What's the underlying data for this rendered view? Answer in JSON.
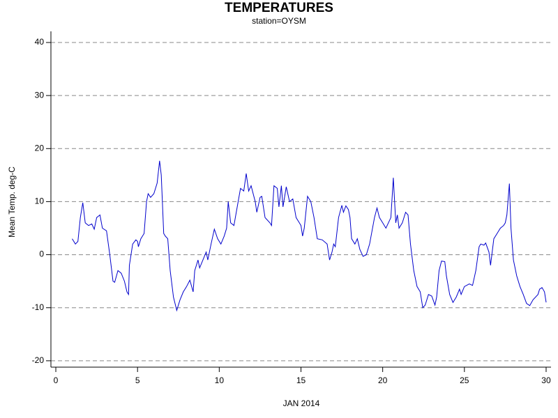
{
  "chart_data": {
    "type": "line",
    "title": "TEMPERATURES",
    "subtitle": "station=OYSM",
    "x_label": "JAN 2014",
    "y_label": "Mean Temp. deg-C",
    "xlim": [
      -0.3,
      30.3
    ],
    "xticks": [
      0,
      5,
      10,
      15,
      20,
      25,
      30
    ],
    "ylim": [
      -21.2,
      42.1
    ],
    "yticks": [
      -20,
      -10,
      0,
      10,
      20,
      30,
      40
    ],
    "grid": true,
    "grid_style": "dashed",
    "series": [
      {
        "name": "Mean Temp",
        "color": "#0000cc",
        "x": [
          1.0,
          1.2,
          1.35,
          1.5,
          1.65,
          1.8,
          2.0,
          2.2,
          2.35,
          2.5,
          2.7,
          2.85,
          3.1,
          3.3,
          3.5,
          3.6,
          3.8,
          4.0,
          4.2,
          4.35,
          4.45,
          4.5,
          4.7,
          4.9,
          5.0,
          5.05,
          5.2,
          5.4,
          5.55,
          5.65,
          5.8,
          6.0,
          6.2,
          6.35,
          6.45,
          6.6,
          6.7,
          6.85,
          7.0,
          7.2,
          7.4,
          7.6,
          7.8,
          8.0,
          8.2,
          8.4,
          8.5,
          8.7,
          8.8,
          9.0,
          9.2,
          9.3,
          9.5,
          9.7,
          9.9,
          10.1,
          10.3,
          10.45,
          10.55,
          10.7,
          10.9,
          11.1,
          11.3,
          11.5,
          11.65,
          11.8,
          11.95,
          12.2,
          12.3,
          12.5,
          12.6,
          12.8,
          13.1,
          13.2,
          13.35,
          13.55,
          13.65,
          13.8,
          13.9,
          14.1,
          14.3,
          14.5,
          14.7,
          14.9,
          15.0,
          15.1,
          15.2,
          15.4,
          15.6,
          15.8,
          16.0,
          16.3,
          16.6,
          16.75,
          16.9,
          17.0,
          17.1,
          17.3,
          17.5,
          17.6,
          17.75,
          17.9,
          18.0,
          18.1,
          18.3,
          18.45,
          18.6,
          18.8,
          19.0,
          19.2,
          19.5,
          19.65,
          19.8,
          20.0,
          20.2,
          20.5,
          20.65,
          20.8,
          20.9,
          21.0,
          21.2,
          21.4,
          21.55,
          21.7,
          21.9,
          22.1,
          22.3,
          22.45,
          22.6,
          22.8,
          23.0,
          23.2,
          23.3,
          23.45,
          23.6,
          23.8,
          23.9,
          24.1,
          24.3,
          24.5,
          24.7,
          24.8,
          25.0,
          25.3,
          25.5,
          25.7,
          25.9,
          26.0,
          26.2,
          26.3,
          26.5,
          26.6,
          26.8,
          27.0,
          27.2,
          27.4,
          27.5,
          27.6,
          27.75,
          27.85,
          28.0,
          28.2,
          28.4,
          28.6,
          28.8,
          29.0,
          29.2,
          29.5,
          29.6,
          29.75,
          29.9,
          30.0
        ],
        "values": [
          3,
          2,
          2.5,
          7,
          9.8,
          6,
          5.5,
          5.8,
          4.8,
          7,
          7.5,
          5,
          4.5,
          0,
          -5,
          -5.2,
          -3,
          -3.5,
          -5,
          -7,
          -7.5,
          -2,
          2,
          2.8,
          2.5,
          1.5,
          3,
          4,
          10,
          11.5,
          10.8,
          11.5,
          13.5,
          17.7,
          15,
          4,
          3.5,
          3,
          -3,
          -8,
          -10.5,
          -8.5,
          -7,
          -6,
          -4.8,
          -7,
          -3,
          -1,
          -2.5,
          -1,
          0.5,
          -1,
          2,
          4.8,
          3,
          2,
          3.5,
          5,
          10,
          6,
          5.5,
          9,
          12.5,
          12,
          15.3,
          12,
          13,
          10,
          8,
          10.8,
          11,
          7,
          6,
          5.5,
          13,
          12.5,
          9,
          13,
          9,
          12.8,
          10,
          10.5,
          7,
          6,
          5.5,
          3.5,
          5,
          11,
          10,
          7,
          3,
          2.8,
          2,
          -1,
          0.5,
          2,
          1.5,
          7,
          9.3,
          8,
          9.2,
          8.5,
          7,
          3,
          2,
          3,
          1,
          -0.3,
          0,
          2,
          7,
          8.8,
          7,
          6,
          5,
          7,
          14.5,
          6,
          7.5,
          5,
          6,
          8,
          7.5,
          2,
          -3,
          -6,
          -7,
          -10,
          -9.5,
          -7.5,
          -7.8,
          -9.5,
          -8,
          -3,
          -1.2,
          -1.3,
          -4,
          -7.5,
          -9,
          -8,
          -6.5,
          -7.5,
          -6,
          -5.5,
          -5.8,
          -3,
          1.5,
          2,
          1.8,
          2.2,
          0.5,
          -2,
          3,
          4,
          5,
          5.5,
          6,
          7.5,
          13.4,
          5,
          -1,
          -4,
          -6,
          -7.5,
          -9.2,
          -9.6,
          -8.5,
          -7.5,
          -6.5,
          -6.2,
          -7,
          -9
        ]
      }
    ]
  }
}
